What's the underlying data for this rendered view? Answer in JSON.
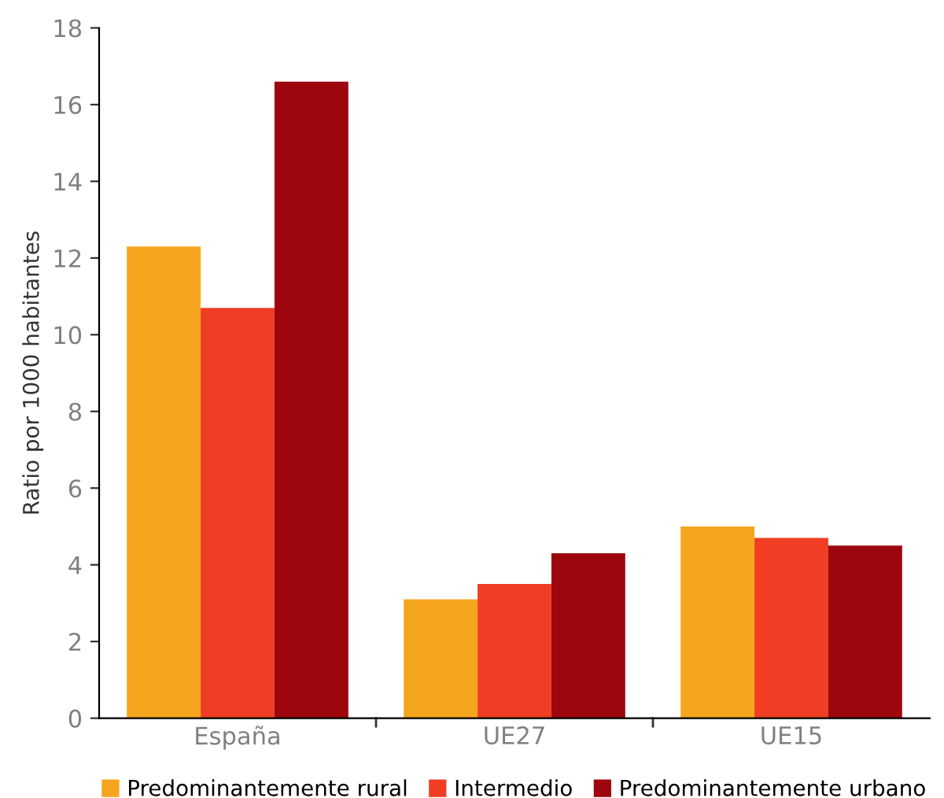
{
  "chart_data": {
    "type": "bar",
    "ylabel": "Ratio por 1000 habitantes",
    "categories": [
      "España",
      "UE27",
      "UE15"
    ],
    "series": [
      {
        "name": "Predominantemente rural",
        "color": "#f6a51e",
        "values": [
          12.3,
          3.1,
          5.0
        ]
      },
      {
        "name": "Intermedio",
        "color": "#ef3e23",
        "values": [
          10.7,
          3.5,
          4.7
        ]
      },
      {
        "name": "Predominantemente urbano",
        "color": "#9e060e",
        "values": [
          16.6,
          4.3,
          4.5
        ]
      }
    ],
    "ylim": [
      0,
      18
    ],
    "yticks": [
      0,
      2,
      4,
      6,
      8,
      10,
      12,
      14,
      16,
      18
    ],
    "grid": false,
    "legend": "bottom"
  }
}
